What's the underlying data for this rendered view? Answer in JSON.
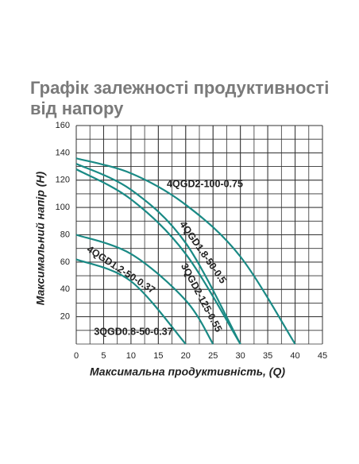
{
  "chart_data": {
    "type": "line",
    "title": "Графік залежності продуктивності від напору",
    "xlabel": "Максимальна продуктивність, (Q)",
    "ylabel": "Максимальний напір (H)",
    "xlim": [
      0,
      45
    ],
    "xticks": [
      0,
      5,
      10,
      15,
      20,
      25,
      30,
      35,
      40,
      45
    ],
    "ylim": [
      0,
      160
    ],
    "yticks": [
      20,
      40,
      60,
      80,
      100,
      120,
      140,
      160
    ],
    "grid": true,
    "series": [
      {
        "name": "4QGD2-100-0.75",
        "color": "#1a8a85",
        "x": [
          0,
          10,
          20,
          30,
          40
        ],
        "values": [
          136,
          125,
          102,
          64,
          0
        ]
      },
      {
        "name": "4QGD1.8-50-0.5",
        "color": "#1a8a85",
        "x": [
          0,
          10,
          20,
          30
        ],
        "values": [
          132,
          113,
          74,
          0
        ]
      },
      {
        "name": "3QGD2-125-0.55",
        "color": "#1a8a85",
        "x": [
          0,
          10,
          20,
          30
        ],
        "values": [
          128,
          106,
          66,
          0
        ]
      },
      {
        "name": "4QGD1.2-50-0.37",
        "color": "#1a8a85",
        "x": [
          0,
          10,
          20,
          25
        ],
        "values": [
          80,
          66,
          32,
          0
        ]
      },
      {
        "name": "3QGD0.8-50-0.37",
        "color": "#1a8a85",
        "x": [
          0,
          10,
          20
        ],
        "values": [
          62,
          46,
          0
        ]
      }
    ]
  }
}
